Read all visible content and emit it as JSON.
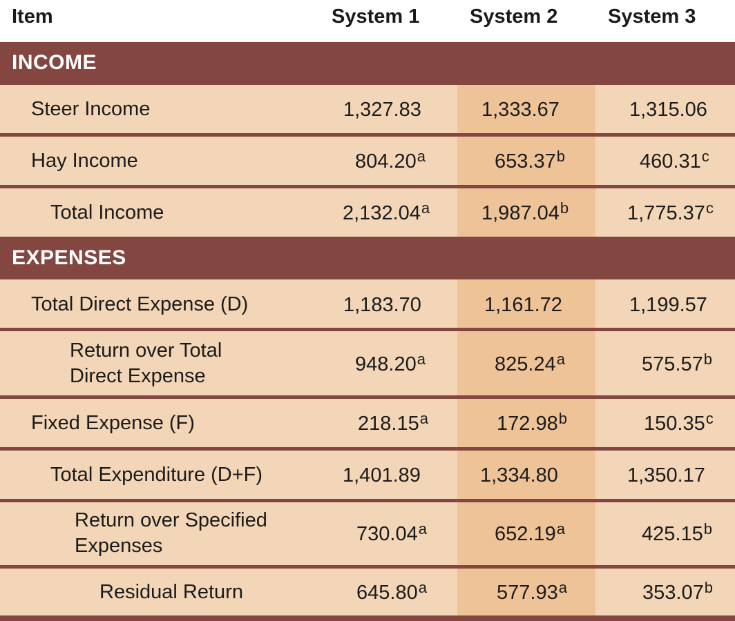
{
  "header": {
    "item": "Item",
    "system1": "System 1",
    "system2": "System 2",
    "system3": "System 3"
  },
  "sections": {
    "income": "INCOME",
    "expenses": "EXPENSES"
  },
  "rows": [
    {
      "label": "Steer Income",
      "s1": "1,327.83",
      "s1_sup": "",
      "s2": "1,333.67",
      "s2_sup": "",
      "s3": "1,315.06",
      "s3_sup": ""
    },
    {
      "label": "Hay Income",
      "s1": "804.20",
      "s1_sup": "a",
      "s2": "653.37",
      "s2_sup": "b",
      "s3": "460.31",
      "s3_sup": "c"
    },
    {
      "label": "Total Income",
      "s1": "2,132.04",
      "s1_sup": "a",
      "s2": "1,987.04",
      "s2_sup": "b",
      "s3": "1,775.37",
      "s3_sup": "c"
    },
    {
      "label": "Total Direct Expense (D)",
      "s1": "1,183.70",
      "s1_sup": "",
      "s2": "1,161.72",
      "s2_sup": "",
      "s3": "1,199.57",
      "s3_sup": ""
    },
    {
      "label_line1": "Return over Total",
      "label_line2": "Direct Expense",
      "s1": "948.20",
      "s1_sup": "a",
      "s2": "825.24",
      "s2_sup": "a",
      "s3": "575.57",
      "s3_sup": "b"
    },
    {
      "label": "Fixed Expense (F)",
      "s1": "218.15",
      "s1_sup": "a",
      "s2": "172.98",
      "s2_sup": "b",
      "s3": "150.35",
      "s3_sup": "c"
    },
    {
      "label": "Total Expenditure (D+F)",
      "s1": "1,401.89",
      "s1_sup": "",
      "s2": "1,334.80",
      "s2_sup": "",
      "s3": "1,350.17",
      "s3_sup": ""
    },
    {
      "label_line1": "Return over Specified",
      "label_line2": "Expenses",
      "s1": "730.04",
      "s1_sup": "a",
      "s2": "652.19",
      "s2_sup": "a",
      "s3": "425.15",
      "s3_sup": "b"
    },
    {
      "label": "Residual Return",
      "s1": "645.80",
      "s1_sup": "a",
      "s2": "577.93",
      "s2_sup": "a",
      "s3": "353.07",
      "s3_sup": "b"
    }
  ],
  "colors": {
    "band": "#834641",
    "row": "#f2d6b7",
    "highlight_column": "#eec397"
  }
}
